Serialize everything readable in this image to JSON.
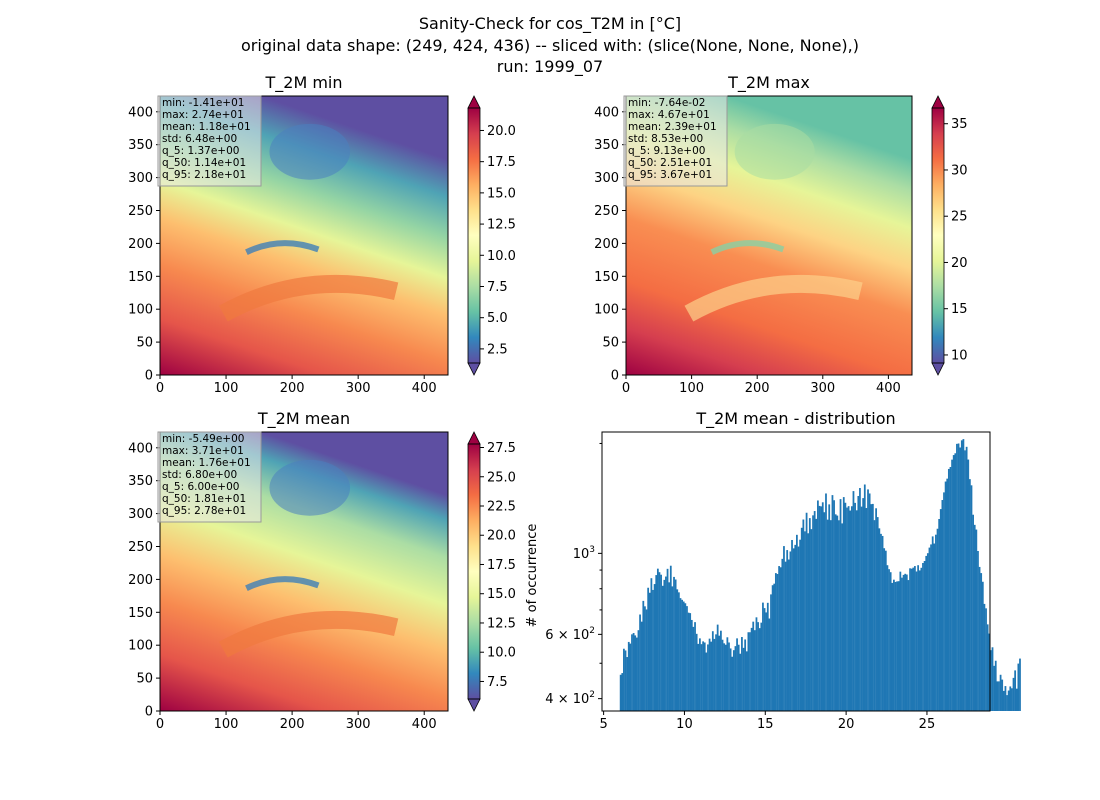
{
  "figure": {
    "title_lines": [
      "Sanity-Check for cos_T2M in [°C]",
      "original data shape: (249, 424, 436) -- sliced with: (slice(None, None, None),)",
      "run: 1999_07"
    ]
  },
  "colors": {
    "colormap": [
      "#5e4fa2",
      "#3288bd",
      "#66c2a5",
      "#abdda4",
      "#e6f598",
      "#ffffbf",
      "#fee08b",
      "#fdae61",
      "#f46d43",
      "#d53e4f",
      "#9e0142"
    ],
    "histogram_bar": "#1f77b4"
  },
  "chart_data": [
    {
      "type": "heatmap",
      "title": "T_2M min",
      "colormap": "Spectral_r",
      "xlim": [
        0,
        436
      ],
      "ylim": [
        0,
        424
      ],
      "xticks": [
        "0",
        "100",
        "200",
        "300",
        "400"
      ],
      "yticks": [
        "0",
        "50",
        "100",
        "150",
        "200",
        "250",
        "300",
        "350",
        "400"
      ],
      "color_range": [
        1.37,
        21.8
      ],
      "colorbar_ticks": [
        "2.5",
        "5.0",
        "7.5",
        "10.0",
        "12.5",
        "15.0",
        "17.5",
        "20.0"
      ],
      "stats": [
        "min: -1.41e+01",
        "max: 2.74e+01",
        "mean: 1.18e+01",
        "std: 6.48e+00",
        "q_5: 1.37e+00",
        "q_50: 1.14e+01",
        "q_95: 2.18e+01"
      ]
    },
    {
      "type": "heatmap",
      "title": "T_2M max",
      "colormap": "Spectral_r",
      "xlim": [
        0,
        436
      ],
      "ylim": [
        0,
        424
      ],
      "xticks": [
        "0",
        "100",
        "200",
        "300",
        "400"
      ],
      "yticks": [
        "0",
        "50",
        "100",
        "150",
        "200",
        "250",
        "300",
        "350",
        "400"
      ],
      "color_range": [
        9.13,
        36.7
      ],
      "colorbar_ticks": [
        "10",
        "15",
        "20",
        "25",
        "30",
        "35"
      ],
      "stats": [
        "min: -7.64e-02",
        "max: 4.67e+01",
        "mean: 2.39e+01",
        "std: 8.53e+00",
        "q_5: 9.13e+00",
        "q_50: 2.51e+01",
        "q_95: 3.67e+01"
      ]
    },
    {
      "type": "heatmap",
      "title": "T_2M mean",
      "colormap": "Spectral_r",
      "xlim": [
        0,
        436
      ],
      "ylim": [
        0,
        424
      ],
      "xticks": [
        "0",
        "100",
        "200",
        "300",
        "400"
      ],
      "yticks": [
        "0",
        "50",
        "100",
        "150",
        "200",
        "250",
        "300",
        "350",
        "400"
      ],
      "color_range": [
        6.0,
        27.8
      ],
      "colorbar_ticks": [
        "7.5",
        "10.0",
        "12.5",
        "15.0",
        "17.5",
        "20.0",
        "22.5",
        "25.0",
        "27.5"
      ],
      "stats": [
        "min: -5.49e+00",
        "max: 3.71e+01",
        "mean: 1.76e+01",
        "std: 6.80e+00",
        "q_5: 6.00e+00",
        "q_50: 1.81e+01",
        "q_95: 2.78e+01"
      ]
    },
    {
      "type": "bar",
      "title": "T_2M mean - distribution",
      "ylabel": "# of occurrence",
      "yscale": "log",
      "xlim": [
        4.9,
        28.9
      ],
      "ylim": [
        370,
        2150
      ],
      "xticks": [
        5,
        10,
        15,
        20,
        25
      ],
      "yticks": [
        {
          "value": 400,
          "base": "4",
          "exp": "2"
        },
        {
          "value": 600,
          "base": "6",
          "exp": "2"
        },
        {
          "value": 1000,
          "base": "10",
          "exp": "3"
        }
      ],
      "yticks_labeled_with_times": [
        true,
        true,
        false
      ],
      "y_minor_ticks": [
        500,
        700,
        800,
        900,
        2000
      ],
      "bin_start": 6.0,
      "bin_width": 0.1,
      "values": [
        465,
        470,
        548,
        542,
        520,
        572,
        566,
        600,
        605,
        596,
        588,
        616,
        680,
        650,
        741,
        716,
        702,
        805,
        780,
        855,
        794,
        824,
        872,
        908,
        888,
        874,
        815,
        846,
        864,
        907,
        833,
        925,
        812,
        862,
        848,
        797,
        782,
        754,
        746,
        738,
        730,
        717,
        688,
        686,
        657,
        629,
        648,
        602,
        565,
        585,
        564,
        574,
        570,
        535,
        563,
        584,
        573,
        612,
        583,
        600,
        638,
        595,
        614,
        580,
        567,
        562,
        589,
        570,
        549,
        521,
        543,
        557,
        585,
        562,
        531,
        590,
        551,
        581,
        539,
        608,
        608,
        625,
        650,
        616,
        668,
        648,
        624,
        646,
        733,
        708,
        689,
        732,
        663,
        772,
        818,
        826,
        883,
        878,
        923,
        916,
        966,
        1047,
        949,
        1021,
        962,
        1012,
        1088,
        1032,
        1055,
        1124,
        1044,
        1090,
        1175,
        1238,
        1149,
        1292,
        1135,
        1249,
        1165,
        1271,
        1306,
        1243,
        1396,
        1349,
        1345,
        1380,
        1296,
        1459,
        1237,
        1362,
        1233,
        1444,
        1398,
        1279,
        1269,
        1232,
        1408,
        1208,
        1426,
        1376,
        1335,
        1347,
        1310,
        1346,
        1481,
        1375,
        1312,
        1436,
        1510,
        1343,
        1417,
        1544,
        1331,
        1497,
        1459,
        1364,
        1366,
        1233,
        1329,
        1257,
        1171,
        1131,
        1116,
        1033,
        1017,
        928,
        905,
        888,
        830,
        847,
        835,
        838,
        839,
        891,
        858,
        873,
        879,
        875,
        845,
        910,
        908,
        914,
        923,
        892,
        928,
        898,
        913,
        941,
        953,
        984,
        1001,
        1037,
        1058,
        1113,
        1064,
        1125,
        1168,
        1242,
        1322,
        1400,
        1469,
        1573,
        1602,
        1703,
        1724,
        1806,
        1859,
        1880,
        1995,
        2000,
        1950,
        2040,
        2056,
        1915,
        1958,
        1807,
        1597,
        1536,
        1276,
        1197,
        1162,
        1015,
        918,
        883,
        836,
        727,
        707,
        639,
        603,
        543,
        553,
        492,
        508,
        446,
        446,
        465,
        451,
        420,
        433,
        409,
        421,
        432,
        427,
        456,
        478,
        426,
        499,
        515
      ]
    }
  ]
}
